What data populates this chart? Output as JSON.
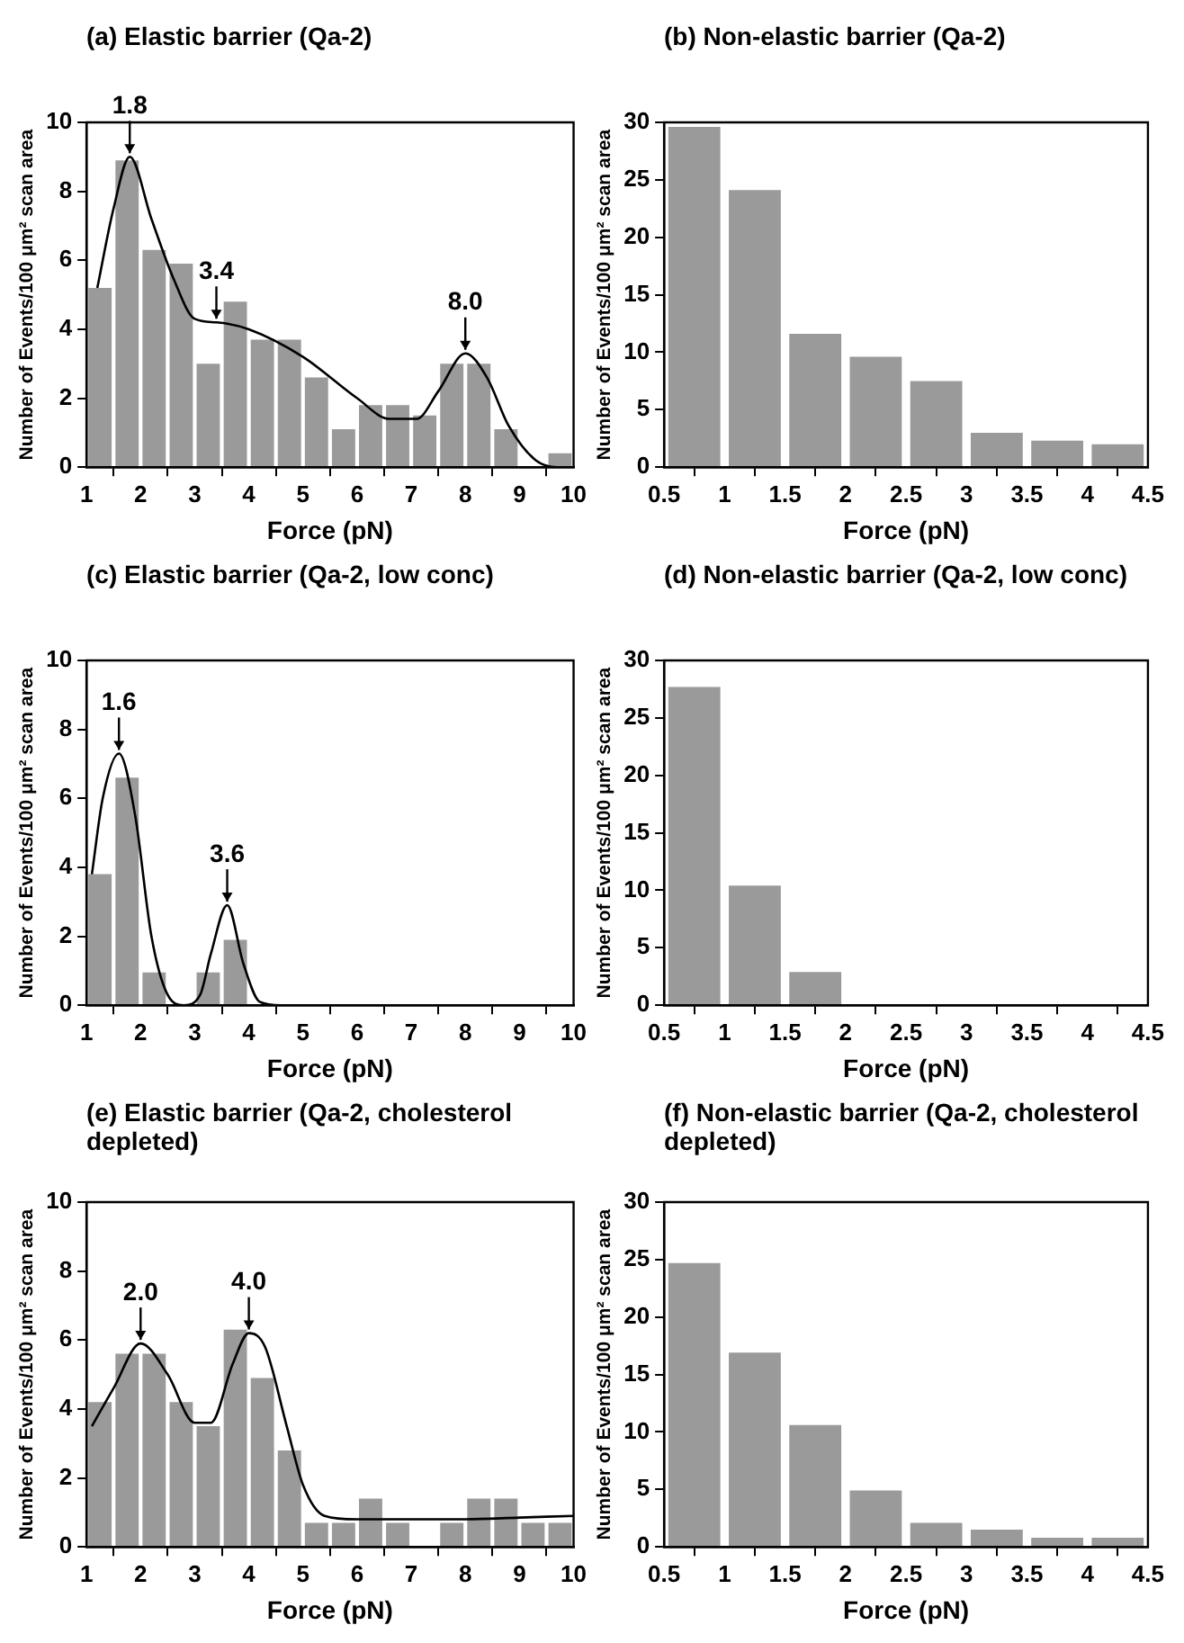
{
  "chart_data": [
    {
      "type": "histogram",
      "title": "(a) Elastic barrier (Qa-2)",
      "xlabel": "Force (pN)",
      "ylabel": "Number of Events/100 μm² scan area",
      "bins": [
        1,
        1.5,
        2,
        2.5,
        3,
        3.5,
        4,
        4.5,
        5,
        5.5,
        6,
        6.5,
        7,
        7.5,
        8,
        8.5,
        9,
        9.5,
        10
      ],
      "series": [
        {
          "type": "histogram",
          "color": "#9a9a9a",
          "values": [
            5.2,
            8.9,
            6.3,
            5.9,
            3.0,
            4.8,
            3.7,
            3.7,
            2.6,
            1.1,
            1.8,
            1.8,
            1.5,
            3.0,
            3.0,
            1.1,
            0,
            0.4
          ]
        },
        {
          "type": "line",
          "color": "#000000",
          "x": [
            1.2,
            1.5,
            1.8,
            2.2,
            2.6,
            3,
            3.4,
            4,
            5,
            6,
            6.6,
            7.1,
            7.5,
            8,
            8.4,
            8.8,
            9.3,
            9.7,
            10
          ],
          "values": [
            5.2,
            7.5,
            9.0,
            7.2,
            5.5,
            4.3,
            4.2,
            4.0,
            3.2,
            2.0,
            1.4,
            1.4,
            2.2,
            3.3,
            2.6,
            1.2,
            0.2,
            0,
            0
          ]
        }
      ],
      "annotations": [
        {
          "text": "1.8",
          "x": 1.8,
          "y": 9.0
        },
        {
          "text": "3.4",
          "x": 3.4,
          "y": 4.2
        },
        {
          "text": "8.0",
          "x": 8.0,
          "y": 3.3
        }
      ],
      "xlim": [
        1,
        10
      ],
      "xticks": [
        1,
        2,
        3,
        4,
        5,
        6,
        7,
        8,
        9,
        10
      ],
      "ylim": [
        0,
        10
      ],
      "yticks": [
        0,
        2,
        4,
        6,
        8,
        10
      ],
      "grid": false,
      "legend": false
    },
    {
      "type": "histogram",
      "title": "(b) Non-elastic barrier (Qa-2)",
      "xlabel": "Force (pN)",
      "ylabel": "Number of Events/100 μm² scan area",
      "bins": [
        0.5,
        1,
        1.5,
        2,
        2.5,
        3,
        3.5,
        4,
        4.5
      ],
      "series": [
        {
          "type": "histogram",
          "color": "#9a9a9a",
          "values": [
            29.6,
            24.1,
            11.6,
            9.6,
            7.5,
            3.0,
            2.3,
            2.0
          ]
        }
      ],
      "xlim": [
        0.5,
        4.5
      ],
      "xticks": [
        0.5,
        1,
        1.5,
        2,
        2.5,
        3,
        3.5,
        4,
        4.5
      ],
      "ylim": [
        0,
        30
      ],
      "yticks": [
        0,
        5,
        10,
        15,
        20,
        25,
        30
      ],
      "grid": false,
      "legend": false
    },
    {
      "type": "histogram",
      "title": "(c) Elastic barrier (Qa-2, low conc)",
      "xlabel": "Force (pN)",
      "ylabel": "Number of Events/100 μm² scan area",
      "bins": [
        1,
        1.5,
        2,
        2.5,
        3,
        3.5,
        4,
        4.5,
        5,
        5.5,
        6,
        6.5,
        7,
        7.5,
        8,
        8.5,
        9,
        9.5,
        10
      ],
      "series": [
        {
          "type": "histogram",
          "color": "#9a9a9a",
          "values": [
            3.8,
            6.6,
            0.95,
            0,
            0.95,
            1.9,
            0,
            0,
            0,
            0,
            0,
            0,
            0,
            0,
            0,
            0,
            0,
            0
          ]
        },
        {
          "type": "line",
          "color": "#000000",
          "x": [
            1.1,
            1.3,
            1.6,
            1.9,
            2.2,
            2.5,
            2.8,
            3.1,
            3.3,
            3.6,
            3.9,
            4.2,
            4.6,
            10
          ],
          "values": [
            3.8,
            6.0,
            7.3,
            5.5,
            2.0,
            0.3,
            0,
            0.3,
            1.5,
            2.9,
            1.2,
            0.1,
            0,
            0
          ]
        }
      ],
      "annotations": [
        {
          "text": "1.6",
          "x": 1.6,
          "y": 7.3
        },
        {
          "text": "3.6",
          "x": 3.6,
          "y": 2.9
        }
      ],
      "xlim": [
        1,
        10
      ],
      "xticks": [
        1,
        2,
        3,
        4,
        5,
        6,
        7,
        8,
        9,
        10
      ],
      "ylim": [
        0,
        10
      ],
      "yticks": [
        0,
        2,
        4,
        6,
        8,
        10
      ],
      "grid": false,
      "legend": false
    },
    {
      "type": "histogram",
      "title": "(d) Non-elastic barrier (Qa-2, low conc)",
      "xlabel": "Force (pN)",
      "ylabel": "Number of Events/100 μm² scan area",
      "bins": [
        0.5,
        1,
        1.5,
        2,
        2.5,
        3,
        3.5,
        4,
        4.5
      ],
      "series": [
        {
          "type": "histogram",
          "color": "#9a9a9a",
          "values": [
            27.7,
            10.4,
            2.9,
            0,
            0,
            0,
            0,
            0
          ]
        }
      ],
      "xlim": [
        0.5,
        4.5
      ],
      "xticks": [
        0.5,
        1,
        1.5,
        2,
        2.5,
        3,
        3.5,
        4,
        4.5
      ],
      "ylim": [
        0,
        30
      ],
      "yticks": [
        0,
        5,
        10,
        15,
        20,
        25,
        30
      ],
      "grid": false,
      "legend": false
    },
    {
      "type": "histogram",
      "title": "(e) Elastic barrier (Qa-2, cholesterol depleted)",
      "xlabel": "Force (pN)",
      "ylabel": "Number of Events/100 μm² scan area",
      "bins": [
        1,
        1.5,
        2,
        2.5,
        3,
        3.5,
        4,
        4.5,
        5,
        5.5,
        6,
        6.5,
        7,
        7.5,
        8,
        8.5,
        9,
        9.5,
        10
      ],
      "series": [
        {
          "type": "histogram",
          "color": "#9a9a9a",
          "values": [
            4.2,
            5.6,
            5.6,
            4.2,
            3.5,
            6.3,
            4.9,
            2.8,
            0.7,
            0.7,
            1.4,
            0.7,
            0,
            0.7,
            1.4,
            1.4,
            0.7,
            0.7
          ]
        },
        {
          "type": "line",
          "color": "#000000",
          "x": [
            1.1,
            1.5,
            2,
            2.5,
            3,
            3.3,
            3.7,
            4,
            4.3,
            4.7,
            5,
            5.4,
            6,
            7,
            8,
            9,
            10
          ],
          "values": [
            3.5,
            4.6,
            5.9,
            5.0,
            3.6,
            3.6,
            5.3,
            6.2,
            5.8,
            3.5,
            1.8,
            0.9,
            0.8,
            0.8,
            0.8,
            0.85,
            0.9
          ]
        }
      ],
      "annotations": [
        {
          "text": "2.0",
          "x": 2.0,
          "y": 5.9
        },
        {
          "text": "4.0",
          "x": 4.0,
          "y": 6.2
        }
      ],
      "xlim": [
        1,
        10
      ],
      "xticks": [
        1,
        2,
        3,
        4,
        5,
        6,
        7,
        8,
        9,
        10
      ],
      "ylim": [
        0,
        10
      ],
      "yticks": [
        0,
        2,
        4,
        6,
        8,
        10
      ],
      "grid": false,
      "legend": false
    },
    {
      "type": "histogram",
      "title": "(f) Non-elastic barrier (Qa-2, cholesterol depleted)",
      "xlabel": "Force (pN)",
      "ylabel": "Number of Events/100 μm² scan area",
      "bins": [
        0.5,
        1,
        1.5,
        2,
        2.5,
        3,
        3.5,
        4,
        4.5
      ],
      "series": [
        {
          "type": "histogram",
          "color": "#9a9a9a",
          "values": [
            24.7,
            16.9,
            10.6,
            4.9,
            2.1,
            1.5,
            0.8,
            0.8
          ]
        }
      ],
      "xlim": [
        0.5,
        4.5
      ],
      "xticks": [
        0.5,
        1,
        1.5,
        2,
        2.5,
        3,
        3.5,
        4,
        4.5
      ],
      "ylim": [
        0,
        30
      ],
      "yticks": [
        0,
        5,
        10,
        15,
        20,
        25,
        30
      ],
      "grid": false,
      "legend": false
    }
  ]
}
